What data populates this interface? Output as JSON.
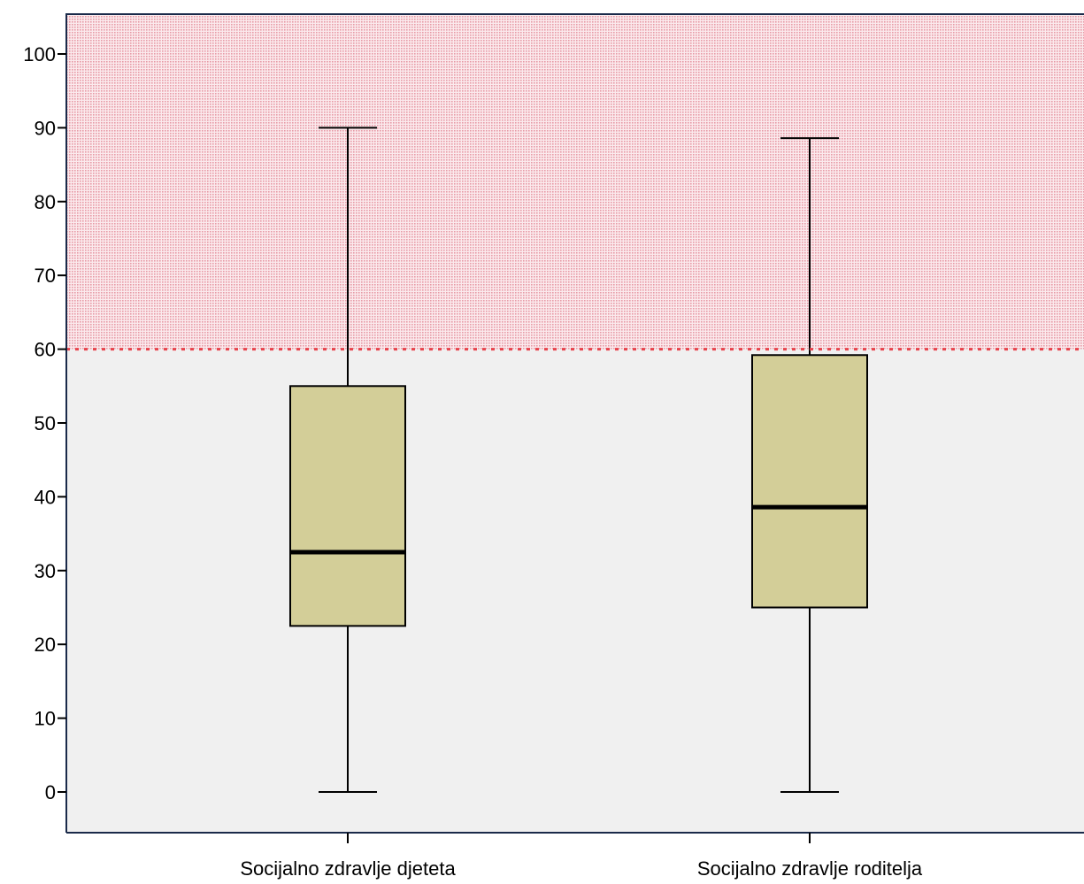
{
  "chart_data": {
    "type": "boxplot",
    "title": "",
    "xlabel": "",
    "ylabel": "",
    "ylim": [
      -5,
      105.5
    ],
    "yticks": [
      0,
      10,
      20,
      30,
      40,
      50,
      60,
      70,
      80,
      90,
      100
    ],
    "categories": [
      "Socijalno zdravlje djeteta",
      "Socijalno zdravlje roditelja"
    ],
    "boxes": [
      {
        "category": "Socijalno zdravlje djeteta",
        "min": 0,
        "q1": 22.5,
        "median": 32.5,
        "q3": 55,
        "max": 90
      },
      {
        "category": "Socijalno zdravlje roditelja",
        "min": 0,
        "q1": 25,
        "median": 38.6,
        "q3": 59.2,
        "max": 88.6
      }
    ],
    "reference_line": {
      "value": 60,
      "style": "dotted",
      "color": "#e8434c"
    },
    "shaded_region": {
      "from": 60,
      "to": 105.5,
      "color": "#f2c6cd",
      "pattern": "dotted"
    },
    "colors": {
      "plot_background": "#f0f0f0",
      "box_fill": "#d3ce98",
      "box_stroke": "#000000",
      "axis": "#1a2a4a"
    },
    "grid": false
  }
}
